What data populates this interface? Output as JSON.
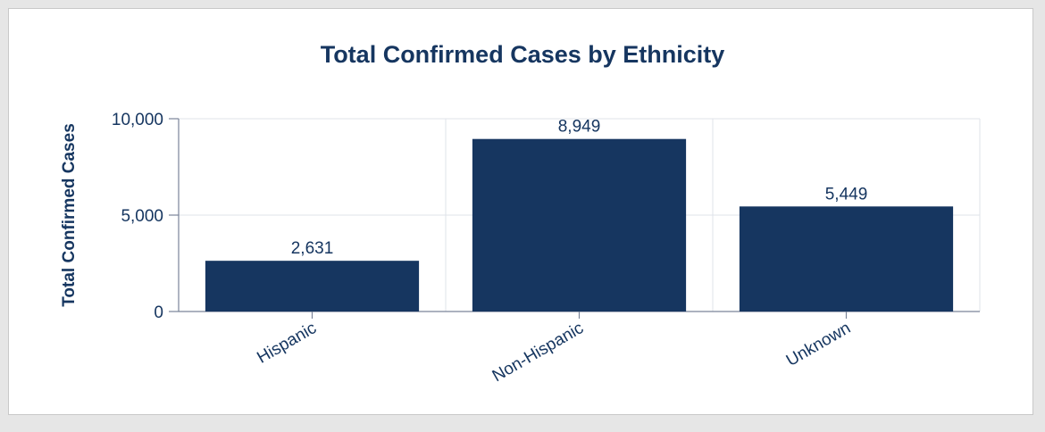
{
  "chart_data": {
    "type": "bar",
    "title": "Total Confirmed Cases by Ethnicity",
    "xlabel": "",
    "ylabel": "Total Confirmed Cases",
    "categories": [
      "Hispanic",
      "Non-Hispanic",
      "Unknown"
    ],
    "values": [
      2631,
      8949,
      5449
    ],
    "data_labels": [
      "2,631",
      "8,949",
      "5,449"
    ],
    "ylim": [
      0,
      10000
    ],
    "yticks": [
      0,
      5000,
      10000
    ],
    "ytick_labels": [
      "0",
      "5,000",
      "10,000"
    ],
    "grid": true,
    "legend": "none",
    "colors": {
      "bar": "#163660",
      "text": "#163660"
    }
  }
}
